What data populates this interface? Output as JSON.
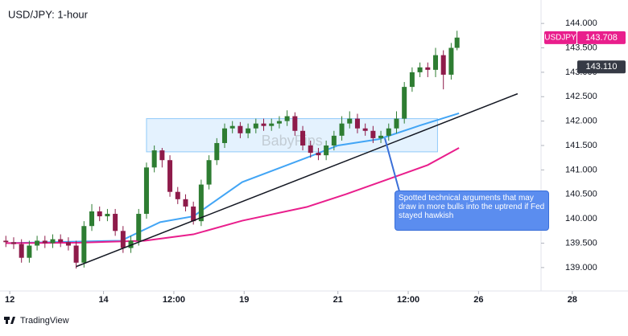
{
  "chart_data": {
    "type": "candlestick",
    "title": "USD/JPY: 1-hour",
    "up_color": "#2e7d32",
    "down_color": "#8e1b4a",
    "x": [
      -2,
      2,
      6,
      10,
      14,
      18,
      22,
      26,
      30,
      34,
      38,
      42,
      46,
      50,
      54,
      58,
      62,
      66,
      70,
      74,
      78,
      82,
      86,
      90,
      94,
      98,
      102,
      106,
      110,
      114,
      118,
      122,
      126,
      130,
      134,
      138,
      142,
      146,
      150,
      154,
      158,
      162,
      166,
      170,
      174,
      178,
      182,
      186,
      190,
      194,
      198,
      202,
      206,
      210,
      214,
      218,
      222,
      226,
      229
    ],
    "open": [
      139.55,
      139.52,
      139.48,
      139.2,
      139.45,
      139.55,
      139.5,
      139.58,
      139.52,
      139.45,
      139.1,
      139.85,
      140.15,
      140.05,
      140.1,
      139.75,
      139.4,
      139.55,
      140.1,
      141.05,
      141.4,
      141.2,
      140.55,
      140.4,
      140.25,
      139.95,
      140.7,
      141.2,
      141.55,
      141.85,
      141.9,
      141.75,
      141.85,
      141.95,
      141.9,
      141.95,
      142.0,
      142.1,
      141.8,
      141.5,
      141.35,
      141.3,
      141.5,
      141.7,
      141.95,
      142.05,
      141.85,
      141.8,
      141.65,
      141.7,
      141.85,
      142.05,
      142.7,
      143.0,
      143.1,
      143.05,
      143.35,
      142.95,
      143.5
    ],
    "high": [
      139.65,
      139.62,
      139.58,
      139.55,
      139.65,
      139.65,
      139.68,
      139.68,
      139.62,
      139.55,
      139.95,
      140.3,
      140.25,
      140.2,
      140.2,
      139.85,
      139.65,
      140.2,
      141.15,
      141.5,
      141.45,
      141.3,
      140.65,
      140.5,
      140.35,
      140.8,
      141.3,
      141.65,
      141.95,
      142.0,
      141.98,
      141.95,
      142.05,
      142.05,
      142.05,
      142.1,
      142.22,
      142.18,
      141.9,
      141.6,
      141.45,
      141.6,
      141.8,
      142.1,
      142.2,
      142.15,
      141.95,
      141.9,
      141.8,
      141.95,
      142.2,
      142.8,
      143.1,
      143.2,
      143.2,
      143.5,
      143.45,
      143.6,
      143.85
    ],
    "low": [
      139.42,
      139.38,
      139.1,
      139.1,
      139.35,
      139.4,
      139.4,
      139.42,
      139.35,
      138.98,
      139.0,
      139.75,
      139.95,
      139.95,
      139.65,
      139.3,
      139.3,
      139.45,
      140.0,
      140.95,
      141.05,
      140.45,
      140.3,
      140.15,
      139.88,
      139.85,
      140.6,
      141.1,
      141.45,
      141.75,
      141.65,
      141.65,
      141.75,
      141.8,
      141.8,
      141.85,
      141.9,
      141.7,
      141.4,
      141.25,
      141.2,
      141.2,
      141.4,
      141.6,
      141.85,
      141.75,
      141.7,
      141.55,
      141.55,
      141.6,
      141.75,
      141.95,
      142.6,
      142.9,
      142.9,
      142.9,
      142.65,
      142.85,
      143.45
    ],
    "close": [
      139.52,
      139.48,
      139.2,
      139.45,
      139.55,
      139.5,
      139.58,
      139.52,
      139.45,
      139.1,
      139.85,
      140.15,
      140.05,
      140.1,
      139.75,
      139.4,
      139.55,
      140.1,
      141.05,
      141.4,
      141.2,
      140.55,
      140.4,
      140.25,
      139.95,
      140.7,
      141.2,
      141.55,
      141.85,
      141.9,
      141.75,
      141.85,
      141.95,
      141.9,
      141.95,
      142.0,
      142.1,
      141.8,
      141.5,
      141.35,
      141.3,
      141.5,
      141.7,
      141.95,
      142.05,
      141.85,
      141.8,
      141.65,
      141.7,
      141.85,
      142.05,
      142.7,
      143.0,
      143.1,
      143.05,
      143.35,
      142.95,
      143.5,
      143.71
    ],
    "overlays": [
      {
        "color": "#42a5f5",
        "x": [
          -2,
          57,
          77,
          94,
          119,
          152,
          168,
          189,
          210,
          230
        ],
        "values": [
          139.5,
          139.55,
          139.93,
          140.05,
          140.75,
          141.25,
          141.5,
          141.63,
          141.91,
          142.16
        ]
      },
      {
        "color": "#e91e8c",
        "x": [
          -2,
          36,
          69,
          94,
          119,
          152,
          172,
          193,
          214,
          230
        ],
        "values": [
          139.5,
          139.51,
          139.55,
          139.68,
          139.96,
          140.24,
          140.5,
          140.8,
          141.1,
          141.45
        ]
      }
    ],
    "trendline": {
      "color": "#131722",
      "x": [
        34,
        260
      ],
      "values": [
        139.02,
        142.56
      ]
    },
    "zone": {
      "x": [
        70,
        219
      ],
      "y": [
        141.37,
        142.05
      ],
      "label": "BabyPips"
    },
    "annotation": "Spotted technical arguments that may draw in more bulls into the uptrend if Fed stayed hawkish",
    "symbol_label": {
      "name": "USDJPY",
      "value": 143.708,
      "color": "#e91e8c"
    },
    "level_label": {
      "value": 143.11,
      "label": "143.110",
      "color": "#363a45"
    },
    "xlim": [
      -5,
      272
    ],
    "xticks": [
      {
        "value": 0,
        "label": "12"
      },
      {
        "value": 48,
        "label": "14"
      },
      {
        "value": 84,
        "label": "12:00"
      },
      {
        "value": 120,
        "label": "19"
      },
      {
        "value": 168,
        "label": "21"
      },
      {
        "value": 204,
        "label": "12:00"
      },
      {
        "value": 240,
        "label": "26"
      },
      {
        "value": 288,
        "label": "28"
      }
    ],
    "ylim": [
      138.52,
      144.48
    ],
    "yticks": [
      {
        "value": 139,
        "label": "139.000"
      },
      {
        "value": 139.5,
        "label": "139.500"
      },
      {
        "value": 140,
        "label": "140.000"
      },
      {
        "value": 140.5,
        "label": "140.500"
      },
      {
        "value": 141,
        "label": "141.000"
      },
      {
        "value": 141.5,
        "label": "141.500"
      },
      {
        "value": 142,
        "label": "142.000"
      },
      {
        "value": 142.5,
        "label": "142.500"
      },
      {
        "value": 143,
        "label": "143.000"
      },
      {
        "value": 143.5,
        "label": "143.500"
      },
      {
        "value": 144,
        "label": "144.000"
      }
    ],
    "footer": "TradingView"
  }
}
